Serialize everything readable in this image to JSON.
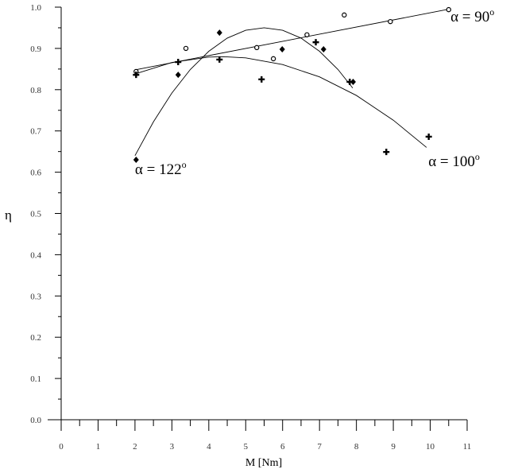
{
  "chart_data": {
    "type": "scatter",
    "xlabel": "M [Nm]",
    "ylabel": "η",
    "xlim": [
      0,
      11
    ],
    "ylim": [
      0.0,
      1.0
    ],
    "x_ticks": [
      "0",
      "1",
      "2",
      "3",
      "4",
      "5",
      "6",
      "7",
      "8",
      "9",
      "10",
      "11"
    ],
    "y_ticks": [
      "0.0",
      "0.1",
      "0.2",
      "0.3",
      "0.4",
      "0.5",
      "0.6",
      "0.7",
      "0.8",
      "0.9",
      "1.0"
    ],
    "grid": false,
    "series": [
      {
        "name": "α = 90°",
        "marker": "open-circle",
        "points": [
          [
            2.03,
            0.844
          ],
          [
            3.38,
            0.9
          ],
          [
            5.3,
            0.902
          ],
          [
            5.75,
            0.875
          ],
          [
            6.66,
            0.933
          ],
          [
            7.67,
            0.981
          ],
          [
            8.92,
            0.965
          ],
          [
            10.5,
            0.994
          ]
        ],
        "fit": [
          [
            2.0,
            0.848
          ],
          [
            10.5,
            0.995
          ]
        ]
      },
      {
        "name": "α = 122°",
        "marker": "diamond",
        "points": [
          [
            2.03,
            0.63
          ],
          [
            3.17,
            0.836
          ],
          [
            4.29,
            0.938
          ],
          [
            5.99,
            0.898
          ],
          [
            7.11,
            0.898
          ],
          [
            7.91,
            0.819
          ]
        ],
        "fit": [
          [
            2.0,
            0.64
          ],
          [
            2.5,
            0.722
          ],
          [
            3.0,
            0.792
          ],
          [
            3.5,
            0.849
          ],
          [
            4.0,
            0.893
          ],
          [
            4.5,
            0.925
          ],
          [
            5.0,
            0.944
          ],
          [
            5.5,
            0.95
          ],
          [
            6.0,
            0.944
          ],
          [
            6.5,
            0.925
          ],
          [
            7.0,
            0.893
          ],
          [
            7.5,
            0.849
          ],
          [
            7.9,
            0.804
          ]
        ]
      },
      {
        "name": "α = 100°",
        "marker": "cross",
        "points": [
          [
            2.03,
            0.836
          ],
          [
            3.17,
            0.867
          ],
          [
            4.29,
            0.873
          ],
          [
            5.43,
            0.825
          ],
          [
            6.9,
            0.915
          ],
          [
            7.82,
            0.819
          ],
          [
            8.81,
            0.649
          ],
          [
            9.96,
            0.686
          ]
        ],
        "fit": [
          [
            2.0,
            0.838
          ],
          [
            3.0,
            0.866
          ],
          [
            4.0,
            0.879
          ],
          [
            4.4,
            0.88
          ],
          [
            5.0,
            0.877
          ],
          [
            6.0,
            0.861
          ],
          [
            7.0,
            0.831
          ],
          [
            8.0,
            0.786
          ],
          [
            9.0,
            0.726
          ],
          [
            9.9,
            0.66
          ]
        ]
      }
    ],
    "annotations": [
      {
        "series": 0,
        "label": "α = 90",
        "sup": "o",
        "at": [
          10.55,
          0.965
        ]
      },
      {
        "series": 1,
        "label": "α = 122",
        "sup": "o",
        "at": [
          2.0,
          0.595
        ]
      },
      {
        "series": 2,
        "label": "α = 100",
        "sup": "o",
        "at": [
          9.95,
          0.615
        ]
      }
    ]
  }
}
